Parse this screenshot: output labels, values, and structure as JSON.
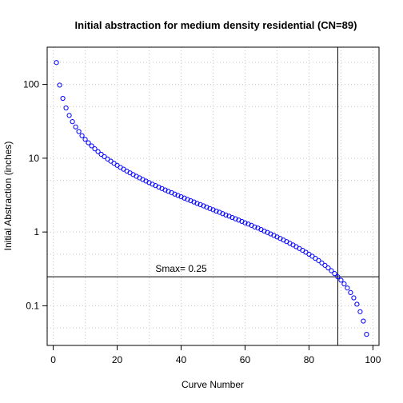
{
  "chart_data": {
    "type": "scatter",
    "title": "Initial abstraction for medium density residential (CN=89)",
    "xlabel": "Curve Number",
    "ylabel": "Initial Abstraction (inches)",
    "xlim": [
      -1.9,
      101.9
    ],
    "ylim": [
      0.029,
      320
    ],
    "y_scale": "log",
    "x_ticks": [
      0,
      20,
      40,
      60,
      80,
      100
    ],
    "x_tick_labels": [
      "0",
      "20",
      "40",
      "60",
      "80",
      "100"
    ],
    "y_ticks": [
      0.1,
      1,
      10,
      100
    ],
    "y_tick_labels": [
      "0.1",
      "1",
      "10",
      "100"
    ],
    "grid": true,
    "point_color": "#0000ff",
    "x": [
      1,
      2,
      3,
      4,
      5,
      6,
      7,
      8,
      9,
      10,
      11,
      12,
      13,
      14,
      15,
      16,
      17,
      18,
      19,
      20,
      21,
      22,
      23,
      24,
      25,
      26,
      27,
      28,
      29,
      30,
      31,
      32,
      33,
      34,
      35,
      36,
      37,
      38,
      39,
      40,
      41,
      42,
      43,
      44,
      45,
      46,
      47,
      48,
      49,
      50,
      51,
      52,
      53,
      54,
      55,
      56,
      57,
      58,
      59,
      60,
      61,
      62,
      63,
      64,
      65,
      66,
      67,
      68,
      69,
      70,
      71,
      72,
      73,
      74,
      75,
      76,
      77,
      78,
      79,
      80,
      81,
      82,
      83,
      84,
      85,
      86,
      87,
      88,
      89,
      90,
      91,
      92,
      93,
      94,
      95,
      96,
      97,
      98
    ],
    "y": [
      198,
      98,
      64.7,
      48,
      38,
      31.3,
      26.6,
      23,
      20.2,
      18,
      16.2,
      14.7,
      13.4,
      12.3,
      11.3,
      10.5,
      9.76,
      9.11,
      8.53,
      8,
      7.52,
      7.09,
      6.7,
      6.33,
      6,
      5.69,
      5.41,
      5.14,
      4.9,
      4.67,
      4.45,
      4.25,
      4.06,
      3.88,
      3.71,
      3.56,
      3.41,
      3.26,
      3.13,
      3,
      2.88,
      2.76,
      2.65,
      2.55,
      2.44,
      2.35,
      2.26,
      2.17,
      2.08,
      2,
      1.92,
      1.85,
      1.77,
      1.7,
      1.64,
      1.57,
      1.51,
      1.45,
      1.39,
      1.33,
      1.28,
      1.23,
      1.17,
      1.13,
      1.08,
      1.03,
      0.985,
      0.941,
      0.899,
      0.857,
      0.817,
      0.778,
      0.74,
      0.703,
      0.667,
      0.632,
      0.597,
      0.564,
      0.532,
      0.5,
      0.469,
      0.439,
      0.41,
      0.381,
      0.353,
      0.326,
      0.299,
      0.273,
      0.247,
      0.222,
      0.198,
      0.174,
      0.151,
      0.128,
      0.105,
      0.083,
      0.062,
      0.041
    ],
    "vline_x": 89,
    "hline_y": 0.247,
    "annotation": {
      "text": "Smax= 0.25",
      "x": 40,
      "y": 0.32
    }
  }
}
